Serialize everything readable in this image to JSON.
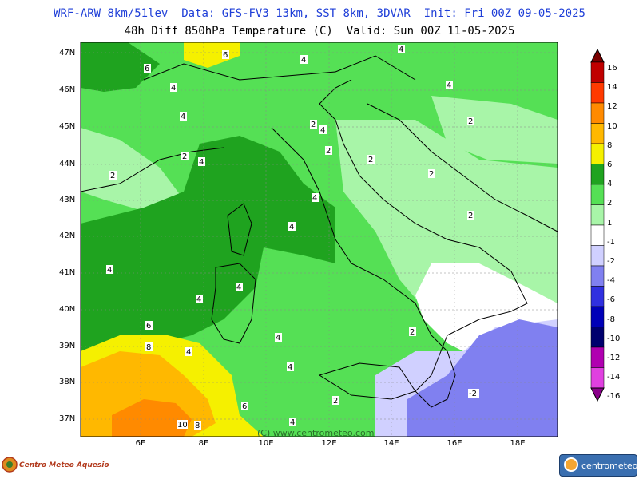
{
  "header": {
    "title_line1": "WRF-ARW 8km/51lev  Data: GFS-FV3 13km, SST 8km, 3DVAR  Init: Fri 00Z 09-05-2025",
    "title_line2": "48h Diff 850hPa Temperature (C)  Valid: Sun 00Z 11-05-2025"
  },
  "map": {
    "lat_labels": [
      "47N",
      "46N",
      "45N",
      "44N",
      "43N",
      "42N",
      "41N",
      "40N",
      "39N",
      "38N",
      "37N"
    ],
    "lon_labels": [
      "6E",
      "8E",
      "10E",
      "12E",
      "14E",
      "16E",
      "18E"
    ],
    "watermark": "(C) www.centrometeo.com",
    "contour_labels": [
      "6",
      "6",
      "4",
      "4",
      "4",
      "4",
      "4",
      "2",
      "4",
      "2",
      "2",
      "2",
      "2",
      "2",
      "2",
      "2",
      "4",
      "4",
      "4",
      "4",
      "4",
      "4",
      "6",
      "8",
      "4",
      "4",
      "2",
      "4",
      "6",
      "10",
      "8",
      "2",
      "-2",
      "4"
    ]
  },
  "colorbar": {
    "labels": [
      "16",
      "14",
      "12",
      "10",
      "8",
      "6",
      "4",
      "2",
      "1",
      "-1",
      "-2",
      "-4",
      "-6",
      "-8",
      "-10",
      "-12",
      "-14",
      "-16"
    ],
    "colors": [
      "#7a0000",
      "#c00000",
      "#ff3a00",
      "#ff8a00",
      "#ffb800",
      "#f5f000",
      "#1fa31f",
      "#55e055",
      "#a8f5a8",
      "#ffffff",
      "#d0d0ff",
      "#8080f0",
      "#3030e0",
      "#0000b8",
      "#00006e",
      "#b000b0",
      "#e040e0",
      "#8a008a"
    ]
  },
  "footer": {
    "left_logo": "Centro Meteo Aquesio",
    "right_logo": "centrometeo"
  }
}
